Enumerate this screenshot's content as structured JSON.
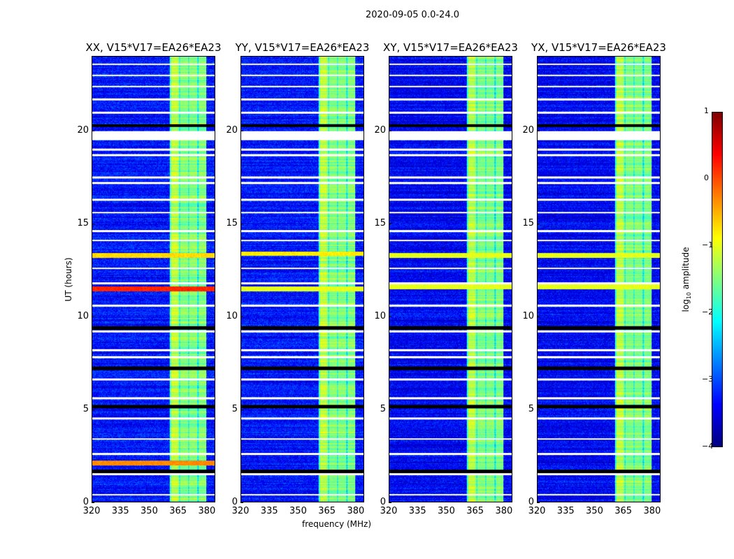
{
  "figure": {
    "suptitle": "2020-09-05 0.0-24.0"
  },
  "chart_data": {
    "type": "heatmap",
    "xlabel": "frequency (MHz)",
    "ylabel": "UT (hours)",
    "xlim": [
      320,
      384.4
    ],
    "ylim": [
      0,
      24
    ],
    "xticks": [
      "320",
      "335",
      "350",
      "365",
      "380"
    ],
    "xtick_values": [
      320,
      335,
      350,
      365,
      380
    ],
    "yticks": [
      "0",
      "5",
      "10",
      "15",
      "20"
    ],
    "ytick_values": [
      0,
      5,
      10,
      15,
      20
    ],
    "panels": [
      {
        "title": "XX, V15*V17=EA26*EA23",
        "background_log_amp": -3.3,
        "rfi_rows": [
          {
            "t": 11.5,
            "v": 0.2
          },
          {
            "t": 13.3,
            "v": -0.7
          },
          {
            "t": 2.1,
            "v": -0.3
          }
        ]
      },
      {
        "title": "YY, V15*V17=EA26*EA23",
        "background_log_amp": -3.3,
        "rfi_rows": [
          {
            "t": 11.5,
            "v": -1.0
          },
          {
            "t": 13.4,
            "v": -0.8
          }
        ]
      },
      {
        "title": "XY, V15*V17=EA26*EA23",
        "background_log_amp": -3.4,
        "rfi_rows": [
          {
            "t": 11.6,
            "v": -1.0
          },
          {
            "t": 13.3,
            "v": -1.0
          }
        ]
      },
      {
        "title": "YX, V15*V17=EA26*EA23",
        "background_log_amp": -3.4,
        "rfi_rows": [
          {
            "t": 11.6,
            "v": -1.0
          },
          {
            "t": 13.3,
            "v": -1.0
          }
        ]
      }
    ],
    "bright_band_mhz": [
      360.7,
      380
    ],
    "bright_band_log_amp": -1.5,
    "flagged_rows_hours": [
      0.4,
      1.5,
      2.6,
      3.4,
      4.5,
      5.6,
      6.6,
      7.8,
      8.2,
      9.2,
      10.6,
      11.8,
      12.6,
      14.1,
      14.6,
      15.6,
      16.3,
      17.2,
      17.5,
      18.7,
      19.0,
      19.7,
      21.0,
      21.7,
      22.4,
      23.0,
      23.6
    ],
    "flagged_block_hours": [
      19.5,
      20.0
    ],
    "zero_rows_hours": [
      1.65,
      5.15,
      7.2,
      9.4,
      20.3
    ],
    "colorbar": {
      "label": "log10 amplitude",
      "range": [
        -4,
        1
      ],
      "ticks": [
        "1",
        "0",
        "−1",
        "−2",
        "−3",
        "−4"
      ],
      "tick_values": [
        1,
        0,
        -1,
        -2,
        -3,
        -4
      ],
      "colormap": "jet"
    }
  }
}
